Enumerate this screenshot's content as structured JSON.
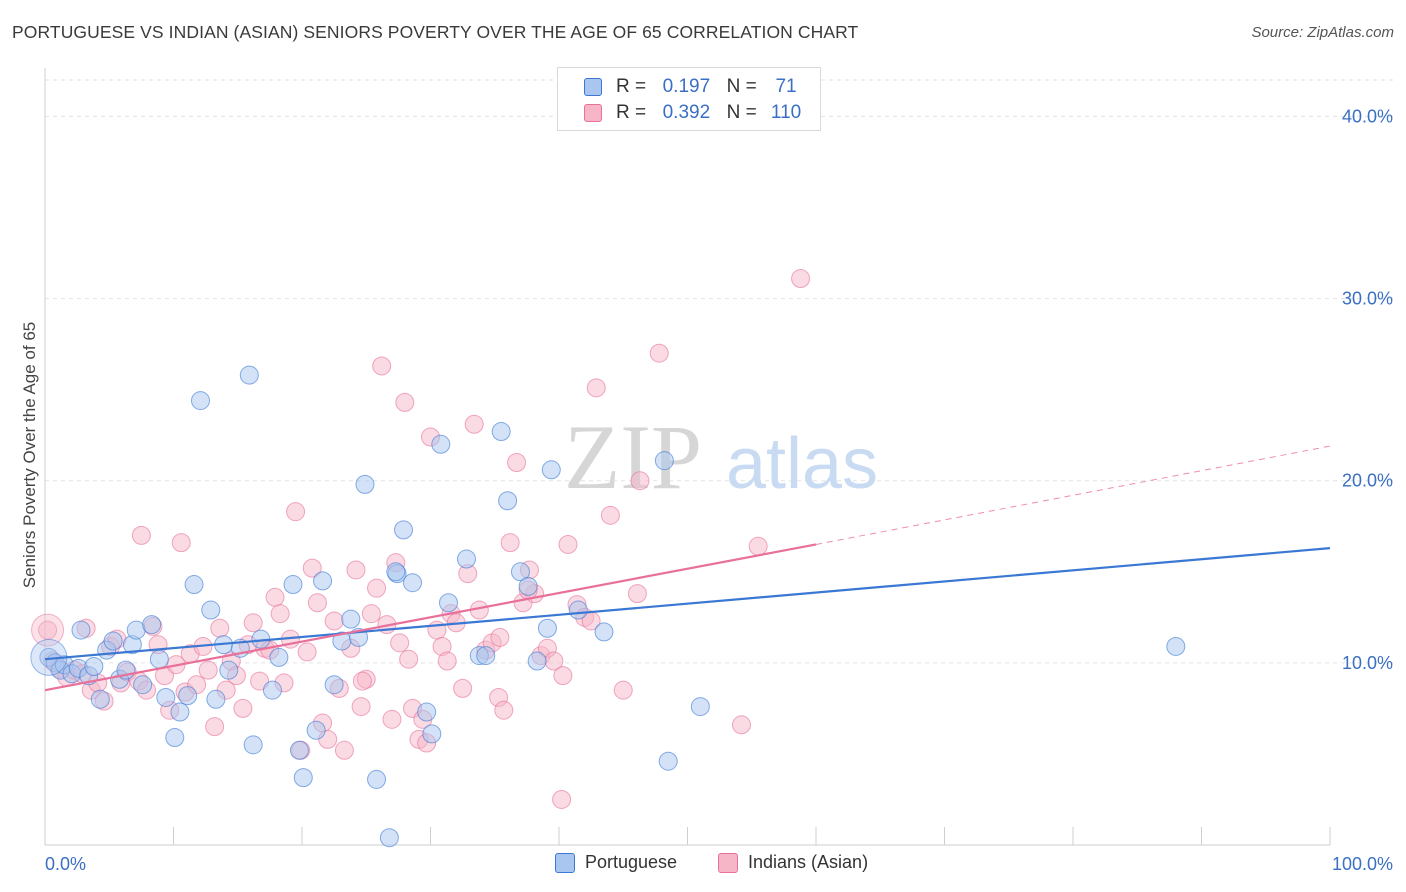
{
  "title": "PORTUGUESE VS INDIAN (ASIAN) SENIORS POVERTY OVER THE AGE OF 65 CORRELATION CHART",
  "source": "Source: ZipAtlas.com",
  "watermark": {
    "zip": "ZIP",
    "atlas": "atlas"
  },
  "legend": {
    "r_label": "R =",
    "n_label": "N =",
    "rows": [
      {
        "name": "Portuguese",
        "r": "0.197",
        "n": "71",
        "color": "#a8c6f0"
      },
      {
        "name": "Indians (Asian)",
        "r": "0.392",
        "n": "110",
        "color": "#f6b6c8"
      }
    ]
  },
  "bottom_legend": {
    "portuguese": "Portuguese",
    "indians": "Indians (Asian)"
  },
  "chart_data": {
    "type": "scatter",
    "title": "PORTUGUESE VS INDIAN (ASIAN) SENIORS POVERTY OVER THE AGE OF 65 CORRELATION CHART",
    "xlabel": "",
    "ylabel": "Seniors Poverty Over the Age of 65",
    "xlim": [
      0,
      100
    ],
    "ylim": [
      0,
      42
    ],
    "x_tick_labels": [
      "0.0%",
      "100.0%"
    ],
    "y_ticks": [
      10,
      20,
      30,
      40
    ],
    "y_tick_labels": [
      "10.0%",
      "20.0%",
      "30.0%",
      "40.0%"
    ],
    "grid": true,
    "legend_position": "top-center",
    "colors": {
      "portuguese": "#3a78d4",
      "indians": "#e8709a",
      "portuguese_fill": "#a8c6f0",
      "indians_fill": "#f6b6c8"
    },
    "series": [
      {
        "name": "Portuguese",
        "r": 0.197,
        "n": 71,
        "trend": {
          "x": [
            0,
            100
          ],
          "y": [
            10.2,
            16.3
          ],
          "dashed_after": null
        },
        "points": [
          [
            0.3,
            10.3
          ],
          [
            0.8,
            10.0
          ],
          [
            1.2,
            9.6
          ],
          [
            1.5,
            9.9
          ],
          [
            2.1,
            9.4
          ],
          [
            2.6,
            9.7
          ],
          [
            2.8,
            11.8
          ],
          [
            3.4,
            9.3
          ],
          [
            3.8,
            9.8
          ],
          [
            4.3,
            8.0
          ],
          [
            4.8,
            10.7
          ],
          [
            5.3,
            11.2
          ],
          [
            5.8,
            9.1
          ],
          [
            6.3,
            9.6
          ],
          [
            6.8,
            11.0
          ],
          [
            7.1,
            11.8
          ],
          [
            7.6,
            8.8
          ],
          [
            8.3,
            12.1
          ],
          [
            8.9,
            10.2
          ],
          [
            9.4,
            8.1
          ],
          [
            10.1,
            5.9
          ],
          [
            10.5,
            7.3
          ],
          [
            11.1,
            8.2
          ],
          [
            11.6,
            14.3
          ],
          [
            12.1,
            24.4
          ],
          [
            12.9,
            12.9
          ],
          [
            13.3,
            8.0
          ],
          [
            13.9,
            11.0
          ],
          [
            14.3,
            9.6
          ],
          [
            15.2,
            10.8
          ],
          [
            15.9,
            25.8
          ],
          [
            16.2,
            5.5
          ],
          [
            16.8,
            11.3
          ],
          [
            17.7,
            8.5
          ],
          [
            18.2,
            10.3
          ],
          [
            19.3,
            14.3
          ],
          [
            19.8,
            5.2
          ],
          [
            20.1,
            3.7
          ],
          [
            21.1,
            6.3
          ],
          [
            21.6,
            14.5
          ],
          [
            22.5,
            8.8
          ],
          [
            23.1,
            11.2
          ],
          [
            23.8,
            12.4
          ],
          [
            24.4,
            11.4
          ],
          [
            24.9,
            19.8
          ],
          [
            25.8,
            3.6
          ],
          [
            26.8,
            0.4
          ],
          [
            27.4,
            14.9
          ],
          [
            27.9,
            17.3
          ],
          [
            28.6,
            14.4
          ],
          [
            29.7,
            7.3
          ],
          [
            30.1,
            6.1
          ],
          [
            30.8,
            22.0
          ],
          [
            31.4,
            13.3
          ],
          [
            32.8,
            15.7
          ],
          [
            33.8,
            10.4
          ],
          [
            34.3,
            10.4
          ],
          [
            35.5,
            22.7
          ],
          [
            36.0,
            18.9
          ],
          [
            37.0,
            15.0
          ],
          [
            37.6,
            14.2
          ],
          [
            38.3,
            10.1
          ],
          [
            39.1,
            11.9
          ],
          [
            39.4,
            20.6
          ],
          [
            41.5,
            12.9
          ],
          [
            43.5,
            11.7
          ],
          [
            48.2,
            21.1
          ],
          [
            48.5,
            4.6
          ],
          [
            51.0,
            7.6
          ],
          [
            88.0,
            10.9
          ],
          [
            27.3,
            15.0
          ]
        ]
      },
      {
        "name": "Indians (Asian)",
        "r": 0.392,
        "n": 110,
        "trend": {
          "x": [
            0,
            60
          ],
          "y": [
            8.5,
            16.5
          ],
          "dashed_to": {
            "x": 100,
            "y": 21.9
          }
        },
        "points": [
          [
            0.2,
            11.8
          ],
          [
            0.6,
            10.1
          ],
          [
            1.1,
            9.7
          ],
          [
            1.7,
            9.2
          ],
          [
            2.3,
            9.6
          ],
          [
            2.9,
            9.4
          ],
          [
            3.2,
            11.9
          ],
          [
            3.6,
            8.5
          ],
          [
            4.1,
            8.9
          ],
          [
            4.6,
            7.9
          ],
          [
            5.1,
            10.9
          ],
          [
            5.6,
            11.3
          ],
          [
            5.9,
            8.9
          ],
          [
            6.4,
            9.5
          ],
          [
            7.3,
            9.0
          ],
          [
            7.5,
            17.0
          ],
          [
            7.9,
            8.5
          ],
          [
            8.4,
            12.0
          ],
          [
            8.8,
            11.0
          ],
          [
            9.3,
            9.3
          ],
          [
            9.7,
            7.4
          ],
          [
            10.2,
            9.9
          ],
          [
            10.6,
            16.6
          ],
          [
            10.9,
            8.4
          ],
          [
            11.3,
            10.5
          ],
          [
            11.8,
            8.8
          ],
          [
            12.3,
            10.9
          ],
          [
            12.7,
            9.6
          ],
          [
            13.2,
            6.5
          ],
          [
            13.6,
            11.9
          ],
          [
            14.1,
            8.5
          ],
          [
            14.5,
            10.1
          ],
          [
            14.9,
            9.3
          ],
          [
            15.4,
            7.5
          ],
          [
            15.8,
            11.0
          ],
          [
            16.2,
            12.2
          ],
          [
            16.7,
            9.0
          ],
          [
            17.1,
            10.8
          ],
          [
            17.5,
            10.7
          ],
          [
            17.9,
            13.6
          ],
          [
            18.3,
            12.7
          ],
          [
            18.6,
            8.9
          ],
          [
            19.1,
            11.3
          ],
          [
            19.5,
            18.3
          ],
          [
            19.9,
            5.2
          ],
          [
            20.4,
            10.6
          ],
          [
            20.8,
            15.2
          ],
          [
            21.2,
            13.3
          ],
          [
            21.6,
            6.7
          ],
          [
            22.0,
            5.8
          ],
          [
            22.5,
            12.3
          ],
          [
            22.9,
            8.6
          ],
          [
            23.3,
            5.2
          ],
          [
            23.8,
            10.8
          ],
          [
            24.2,
            15.1
          ],
          [
            24.6,
            7.6
          ],
          [
            25.0,
            9.1
          ],
          [
            25.4,
            12.7
          ],
          [
            25.8,
            14.1
          ],
          [
            26.2,
            26.3
          ],
          [
            26.6,
            12.1
          ],
          [
            27.0,
            6.9
          ],
          [
            27.3,
            15.5
          ],
          [
            27.6,
            11.1
          ],
          [
            28.0,
            24.3
          ],
          [
            28.3,
            10.2
          ],
          [
            28.6,
            7.5
          ],
          [
            29.1,
            5.8
          ],
          [
            29.4,
            6.9
          ],
          [
            29.7,
            5.6
          ],
          [
            30.0,
            22.4
          ],
          [
            30.5,
            11.8
          ],
          [
            30.9,
            10.9
          ],
          [
            31.3,
            10.1
          ],
          [
            31.6,
            12.7
          ],
          [
            32.0,
            12.2
          ],
          [
            32.5,
            8.6
          ],
          [
            32.9,
            14.9
          ],
          [
            33.4,
            23.1
          ],
          [
            33.8,
            12.9
          ],
          [
            34.3,
            10.7
          ],
          [
            34.8,
            11.1
          ],
          [
            35.3,
            8.1
          ],
          [
            35.7,
            7.4
          ],
          [
            36.2,
            16.6
          ],
          [
            36.7,
            21.0
          ],
          [
            37.2,
            13.3
          ],
          [
            37.7,
            15.1
          ],
          [
            38.1,
            13.8
          ],
          [
            38.6,
            10.4
          ],
          [
            39.1,
            10.8
          ],
          [
            39.6,
            10.1
          ],
          [
            40.3,
            9.3
          ],
          [
            40.7,
            16.5
          ],
          [
            41.4,
            13.2
          ],
          [
            42.0,
            12.5
          ],
          [
            42.5,
            12.3
          ],
          [
            42.9,
            25.1
          ],
          [
            44.0,
            18.1
          ],
          [
            45.0,
            8.5
          ],
          [
            46.1,
            13.8
          ],
          [
            46.3,
            20.0
          ],
          [
            47.8,
            27.0
          ],
          [
            54.2,
            6.6
          ],
          [
            55.5,
            16.4
          ],
          [
            58.8,
            31.1
          ],
          [
            40.2,
            2.5
          ],
          [
            35.4,
            11.4
          ],
          [
            24.7,
            9.0
          ],
          [
            37.6,
            14.0
          ]
        ]
      }
    ]
  }
}
